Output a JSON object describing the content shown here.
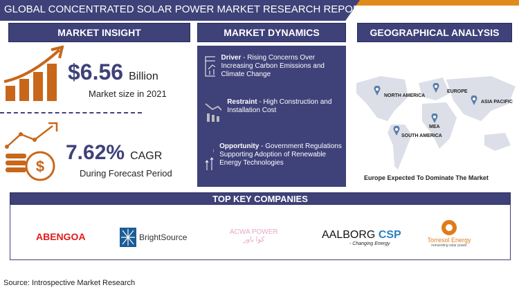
{
  "title": "GLOBAL CONCENTRATED SOLAR POWER MARKET RESEARCH REPORT",
  "sections": {
    "insight": "MARKET INSIGHT",
    "dynamics": "MARKET DYNAMICS",
    "geo": "GEOGRAPHICAL ANALYSIS",
    "companies": "TOP KEY COMPANIES"
  },
  "insight": {
    "market_value": "$6.56",
    "market_unit": "Billion",
    "market_caption": "Market size in 2021",
    "cagr_value": "7.62%",
    "cagr_unit": "CAGR",
    "cagr_caption": "During Forecast Period"
  },
  "dynamics": [
    {
      "label": "Driver",
      "text": " - Rising Concerns Over Increasing Carbon Emissions and Climate Change",
      "icon": "chart-monitor-icon"
    },
    {
      "label": "Restraint",
      "text": " - High Construction and Installation Cost",
      "icon": "declining-bars-icon"
    },
    {
      "label": "Opportunity",
      "text": " - Government Regulations Supporting Adoption of Renewable Energy Technologies",
      "icon": "rising-bars-icon"
    }
  ],
  "geo": {
    "regions": [
      "NORTH AMERICA",
      "EUROPE",
      "ASIA PACIFIC",
      "MEA",
      "SOUTH AMERICA"
    ],
    "caption": "Europe Expected To Dominate The Market"
  },
  "companies": [
    {
      "name": "ABENGOA",
      "color": "#e3191b"
    },
    {
      "name": "BrightSource",
      "color": "#333333"
    },
    {
      "name": "ACWA POWER",
      "arabic": "كوا باور",
      "color": "#e8a6c8"
    },
    {
      "name": "AALBORG",
      "suffix": "CSP",
      "tagline": "- Changing Energy",
      "color": "#111111"
    },
    {
      "name": "Torresol Energy",
      "tagline": "reinventing solar power",
      "color": "#e07b1a"
    }
  ],
  "source": "Source: Introspective Market Research",
  "colors": {
    "navy": "#3f4179",
    "orange": "#c8671a",
    "accent": "#e08a1a"
  }
}
